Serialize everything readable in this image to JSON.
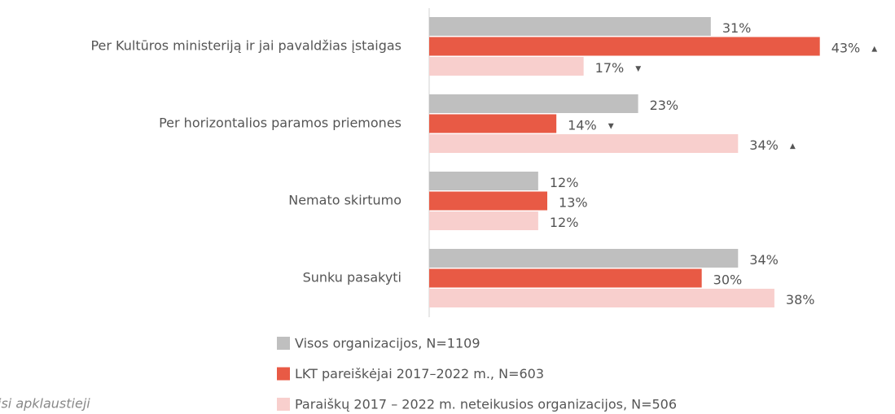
{
  "chart_data": {
    "type": "bar",
    "orientation": "horizontal",
    "categories": [
      "Per Kultūros ministeriją ir jai pavaldžias įstaigas",
      "Per horizontalios paramos priemones",
      "Nemato skirtumo",
      "Sunku pasakyti"
    ],
    "series": [
      {
        "name": "Visos organizacijos, N=1109",
        "color": "#bfbfbf",
        "values": [
          31,
          23,
          12,
          34
        ],
        "value_labels": [
          "31%",
          "23%",
          "12%",
          "34%"
        ],
        "value_markers": [
          null,
          null,
          null,
          null
        ]
      },
      {
        "name": "LKT pareiškėjai 2017–2022 m., N=603",
        "color": "#e85a45",
        "values": [
          43,
          14,
          13,
          30
        ],
        "value_labels": [
          "43%",
          "14%",
          "13%",
          "30%"
        ],
        "value_markers": [
          "▲",
          "▼",
          null,
          null
        ]
      },
      {
        "name": "Paraiškų 2017 – 2022 m. neteikusios organizacijos, N=506",
        "color": "#f8cfcd",
        "values": [
          17,
          34,
          12,
          38
        ],
        "value_labels": [
          "17%",
          "34%",
          "12%",
          "38%"
        ],
        "value_markers": [
          "▼",
          "▲",
          null,
          null
        ]
      }
    ],
    "xlim": [
      0,
      45
    ],
    "note": "isi apklaustieji"
  }
}
